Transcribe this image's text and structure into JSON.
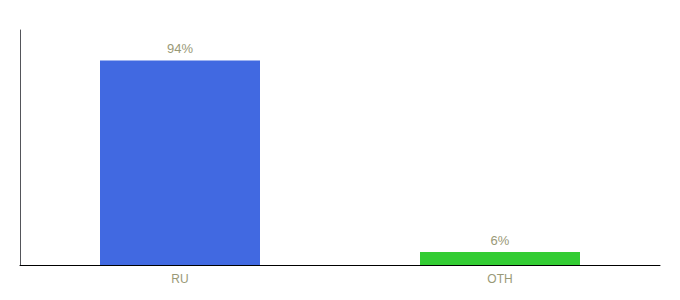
{
  "chart_data": {
    "type": "bar",
    "categories": [
      "RU",
      "OTH"
    ],
    "values": [
      94,
      6
    ],
    "colors": [
      "#4169e1",
      "#33cc33"
    ],
    "value_labels": [
      "94%",
      "6%"
    ],
    "data_labels": true,
    "ylim": [
      0,
      108
    ],
    "tick_labels": "x",
    "grid": false
  }
}
